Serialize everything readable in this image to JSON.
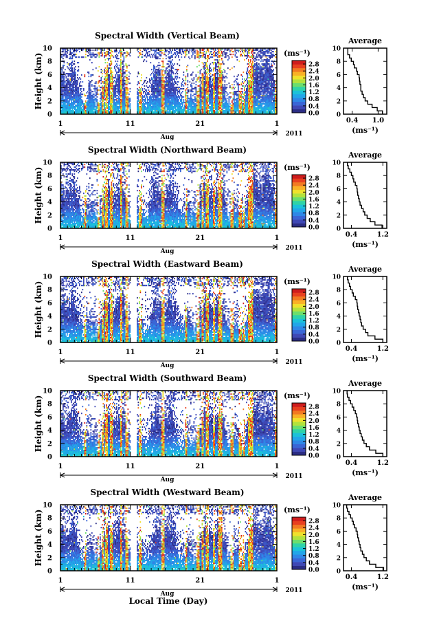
{
  "chart_data": {
    "type": "heatmap",
    "x_tick_labels": [
      "1",
      "11",
      "21",
      "1"
    ],
    "month_label": "Aug",
    "year_label": "2011",
    "xlabel": "Local Time (Day)",
    "ylabel": "Height (km)",
    "ylim": [
      0,
      10
    ],
    "y_ticks": [
      "0",
      "2",
      "4",
      "6",
      "8",
      "10"
    ],
    "colorbar": {
      "unit": "(ms⁻¹)",
      "ticks": [
        "0.0",
        "0.4",
        "0.8",
        "1.2",
        "1.6",
        "2.0",
        "2.4",
        "2.8"
      ],
      "range": [
        0,
        3.0
      ],
      "colors": [
        "#2b2d84",
        "#3f48b5",
        "#3a66d6",
        "#2f87e6",
        "#22a6e8",
        "#1cc2d9",
        "#2fd3a8",
        "#6bde6e",
        "#b3e23c",
        "#f0e12c",
        "#f9b126",
        "#f27a22",
        "#e8401f",
        "#cf1d1d"
      ]
    },
    "average": {
      "title": "Average",
      "xlabel": "(ms⁻¹)",
      "y_ticks": [
        "0",
        "2",
        "4",
        "6",
        "8",
        "10"
      ]
    },
    "panels": [
      {
        "title": "Spectral Width (Vertical Beam)",
        "avg_ticks": [
          "0.4",
          "1.0"
        ],
        "avg_xlim": [
          0.2,
          1.2
        ],
        "avg_height": [
          0,
          0.5,
          1,
          1.5,
          2,
          2.5,
          3,
          3.5,
          4,
          4.5,
          5,
          5.5,
          6,
          6.5,
          7,
          7.5,
          8,
          8.5,
          9,
          9.5
        ],
        "avg_value": [
          1.1,
          0.98,
          0.86,
          0.76,
          0.7,
          0.66,
          0.63,
          0.6,
          0.6,
          0.58,
          0.57,
          0.56,
          0.52,
          0.5,
          0.45,
          0.43,
          0.38,
          0.34,
          0.3,
          0.3
        ]
      },
      {
        "title": "Spectral Width (Northward Beam)",
        "avg_ticks": [
          "0.4",
          "1.2"
        ],
        "avg_xlim": [
          0.2,
          1.3
        ],
        "avg_height": [
          0,
          0.5,
          1,
          1.5,
          2,
          2.5,
          3,
          3.5,
          4,
          4.5,
          5,
          5.5,
          6,
          6.5,
          7,
          7.5,
          8,
          8.5,
          9,
          9.5
        ],
        "avg_value": [
          1.18,
          1.0,
          0.88,
          0.8,
          0.74,
          0.7,
          0.66,
          0.62,
          0.6,
          0.58,
          0.56,
          0.55,
          0.54,
          0.5,
          0.46,
          0.44,
          0.4,
          0.36,
          0.32,
          0.3
        ]
      },
      {
        "title": "Spectral Width (Eastward Beam)",
        "avg_ticks": [
          "0.4",
          "1.2"
        ],
        "avg_xlim": [
          0.2,
          1.3
        ],
        "avg_height": [
          0,
          0.5,
          1,
          1.5,
          2,
          2.5,
          3,
          3.5,
          4,
          4.5,
          5,
          5.5,
          6,
          6.5,
          7,
          7.5,
          8,
          8.5,
          9,
          9.5
        ],
        "avg_value": [
          1.2,
          1.0,
          0.82,
          0.76,
          0.7,
          0.66,
          0.64,
          0.62,
          0.6,
          0.58,
          0.56,
          0.55,
          0.54,
          0.5,
          0.45,
          0.42,
          0.38,
          0.35,
          0.32,
          0.3
        ]
      },
      {
        "title": "Spectral Width (Southward Beam)",
        "avg_ticks": [
          "0.4",
          "1.2"
        ],
        "avg_xlim": [
          0.2,
          1.3
        ],
        "avg_height": [
          0,
          0.5,
          1,
          1.5,
          2,
          2.5,
          3,
          3.5,
          4,
          4.5,
          5,
          5.5,
          6,
          6.5,
          7,
          7.5,
          8,
          8.5,
          9,
          9.5
        ],
        "avg_value": [
          1.2,
          1.02,
          0.86,
          0.78,
          0.72,
          0.68,
          0.65,
          0.62,
          0.6,
          0.58,
          0.56,
          0.55,
          0.53,
          0.5,
          0.46,
          0.42,
          0.38,
          0.34,
          0.3,
          0.29
        ]
      },
      {
        "title": "Spectral Width (Westward Beam)",
        "avg_ticks": [
          "0.4",
          "1.2"
        ],
        "avg_xlim": [
          0.2,
          1.3
        ],
        "avg_height": [
          0,
          0.5,
          1,
          1.5,
          2,
          2.5,
          3,
          3.5,
          4,
          4.5,
          5,
          5.5,
          6,
          6.5,
          7,
          7.5,
          8,
          8.5,
          9,
          9.5
        ],
        "avg_value": [
          1.22,
          1.02,
          0.86,
          0.78,
          0.72,
          0.68,
          0.64,
          0.62,
          0.6,
          0.58,
          0.56,
          0.55,
          0.52,
          0.48,
          0.45,
          0.42,
          0.38,
          0.34,
          0.3,
          0.28
        ]
      }
    ],
    "data_gaps_days": [
      [
        11,
        11.8
      ]
    ],
    "grid": false
  }
}
